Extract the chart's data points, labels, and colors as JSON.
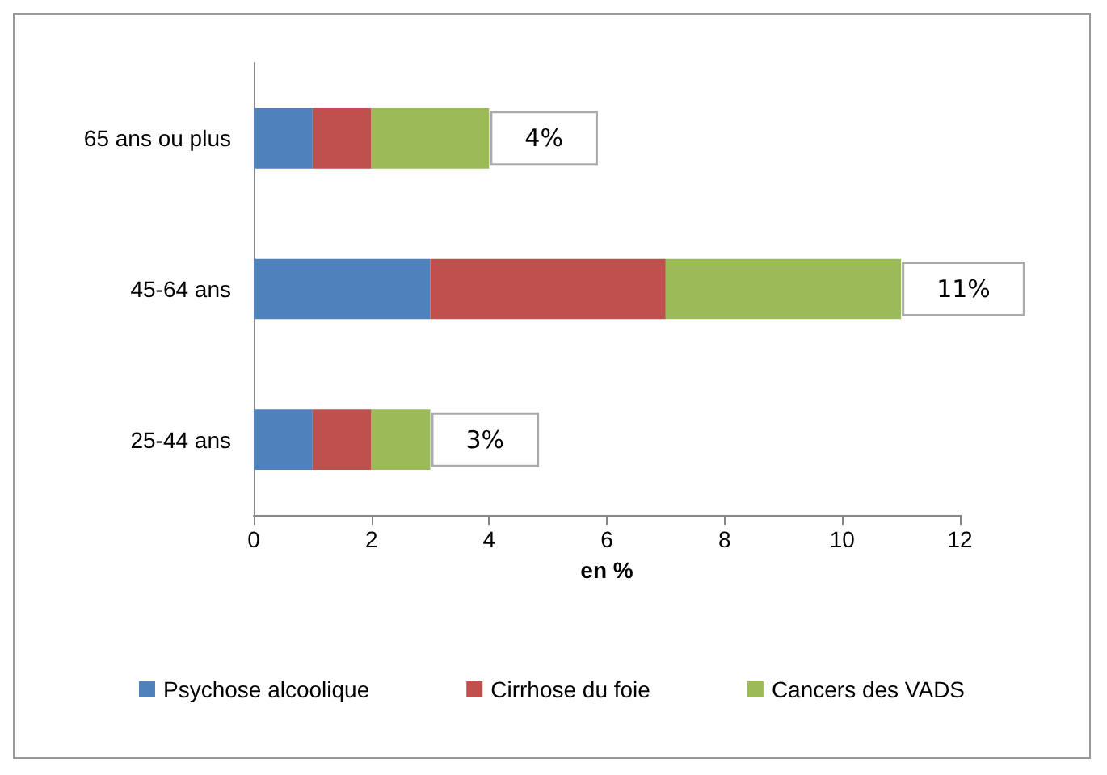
{
  "chart_data": {
    "type": "bar",
    "orientation": "horizontal",
    "stacked": true,
    "xlabel": "en %",
    "categories": [
      "65 ans ou plus",
      "45-64 ans",
      "25-44 ans"
    ],
    "series": [
      {
        "name": "Psychose alcoolique",
        "color": "#4f81bd",
        "values": [
          1,
          3,
          1
        ]
      },
      {
        "name": "Cirrhose du foie",
        "color": "#c0504d",
        "values": [
          1,
          4,
          1
        ]
      },
      {
        "name": "Cancers des VADS",
        "color": "#9bbb59",
        "values": [
          2,
          4,
          1
        ]
      }
    ],
    "totals": [
      "4%",
      "11%",
      "3%"
    ],
    "xlim": [
      0,
      12
    ],
    "xticks": [
      0,
      2,
      4,
      6,
      8,
      10,
      12
    ],
    "grid": false,
    "legend": "bottom"
  }
}
